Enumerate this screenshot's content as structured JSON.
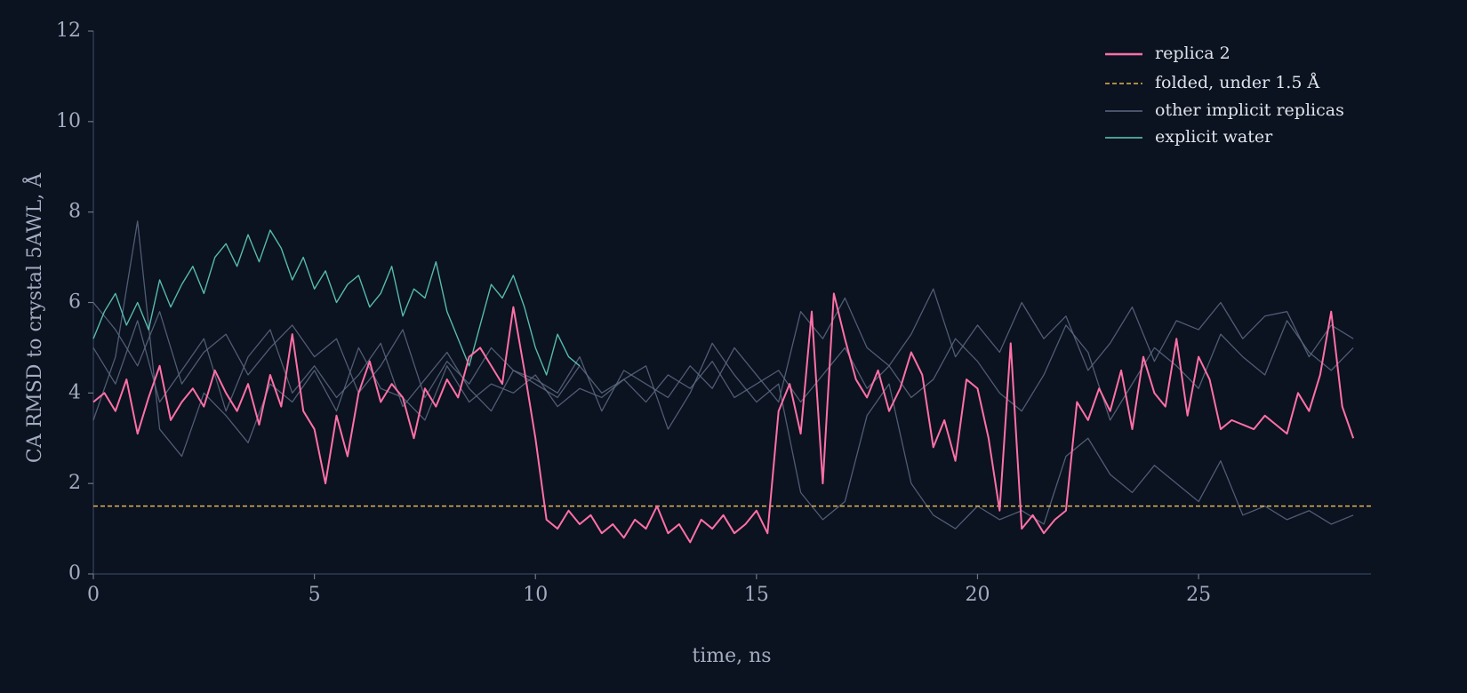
{
  "chart_data": {
    "type": "line",
    "xlabel": "time, ns",
    "ylabel": "CA RMSD to crystal 5AWL, Å",
    "xlim": [
      0,
      28.9
    ],
    "ylim": [
      0,
      12
    ],
    "xticks": [
      0,
      5,
      10,
      15,
      20,
      25
    ],
    "yticks": [
      0,
      2,
      4,
      6,
      8,
      10,
      12
    ],
    "grid": false,
    "legend": "upper right",
    "hline": {
      "value": 1.5,
      "label": "folded, under 1.5 Å",
      "color": "#e3b552"
    },
    "series": [
      {
        "name": "replica 2",
        "color": "#ff70a6",
        "x": [
          0,
          0.25,
          0.5,
          0.75,
          1,
          1.25,
          1.5,
          1.75,
          2,
          2.25,
          2.5,
          2.75,
          3,
          3.25,
          3.5,
          3.75,
          4,
          4.25,
          4.5,
          4.75,
          5,
          5.25,
          5.5,
          5.75,
          6,
          6.25,
          6.5,
          6.75,
          7,
          7.25,
          7.5,
          7.75,
          8,
          8.25,
          8.5,
          8.75,
          9,
          9.25,
          9.5,
          9.75,
          10,
          10.25,
          10.5,
          10.75,
          11,
          11.25,
          11.5,
          11.75,
          12,
          12.25,
          12.5,
          12.75,
          13,
          13.25,
          13.5,
          13.75,
          14,
          14.25,
          14.5,
          14.75,
          15,
          15.25,
          15.5,
          15.75,
          16,
          16.25,
          16.5,
          16.75,
          17,
          17.25,
          17.5,
          17.75,
          18,
          18.25,
          18.5,
          18.75,
          19,
          19.25,
          19.5,
          19.75,
          20,
          20.25,
          20.5,
          20.75,
          21,
          21.25,
          21.5,
          21.75,
          22,
          22.25,
          22.5,
          22.75,
          23,
          23.25,
          23.5,
          23.75,
          24,
          24.25,
          24.5,
          24.75,
          25,
          25.25,
          25.5,
          25.75,
          26,
          26.25,
          26.5,
          26.75,
          27,
          27.25,
          27.5,
          27.75,
          28,
          28.25,
          28.5
        ],
        "values": [
          3.8,
          4.0,
          3.6,
          4.3,
          3.1,
          3.9,
          4.6,
          3.4,
          3.8,
          4.1,
          3.7,
          4.5,
          4.0,
          3.6,
          4.2,
          3.3,
          4.4,
          3.7,
          5.3,
          3.6,
          3.2,
          2.0,
          3.5,
          2.6,
          4.0,
          4.7,
          3.8,
          4.2,
          3.9,
          3.0,
          4.1,
          3.7,
          4.3,
          3.9,
          4.8,
          5.0,
          4.6,
          4.2,
          5.9,
          4.5,
          3.0,
          1.2,
          1.0,
          1.4,
          1.1,
          1.3,
          0.9,
          1.1,
          0.8,
          1.2,
          1.0,
          1.5,
          0.9,
          1.1,
          0.7,
          1.2,
          1.0,
          1.3,
          0.9,
          1.1,
          1.4,
          0.9,
          3.6,
          4.2,
          3.1,
          5.8,
          2.0,
          6.2,
          5.2,
          4.3,
          3.9,
          4.5,
          3.6,
          4.1,
          4.9,
          4.4,
          2.8,
          3.4,
          2.5,
          4.3,
          4.1,
          3.0,
          1.4,
          5.1,
          1.0,
          1.3,
          0.9,
          1.2,
          1.4,
          3.8,
          3.4,
          4.1,
          3.6,
          4.5,
          3.2,
          4.8,
          4.0,
          3.7,
          5.2,
          3.5,
          4.8,
          4.3,
          3.2,
          3.4,
          3.3,
          3.2,
          3.5,
          3.3,
          3.1,
          4.0,
          3.6,
          4.4,
          5.8,
          3.7,
          3.0
        ]
      },
      {
        "name": "other implicit replicas",
        "color": "#5d6a83",
        "x": [
          0,
          0.5,
          1,
          1.5,
          2,
          2.5,
          3,
          3.5,
          4,
          4.5,
          5,
          5.5,
          6,
          6.5,
          7,
          7.5,
          8,
          8.5,
          9,
          9.5,
          10,
          10.5,
          11,
          11.5,
          12,
          12.5,
          13,
          13.5,
          14,
          14.5,
          15,
          15.5,
          16,
          16.5,
          17,
          17.5,
          18,
          18.5,
          19,
          19.5,
          20,
          20.5,
          21,
          21.5,
          22,
          22.5,
          23,
          23.5,
          24,
          24.5,
          25,
          25.5,
          26,
          26.5,
          27,
          27.5,
          28,
          28.5
        ],
        "values": [
          5.0,
          4.2,
          5.6,
          3.8,
          4.5,
          5.2,
          3.6,
          4.8,
          5.4,
          4.0,
          4.6,
          3.9,
          4.4,
          5.1,
          3.7,
          4.3,
          4.9,
          4.1,
          3.6,
          4.5,
          4.2,
          3.9,
          4.6,
          4.0,
          4.3,
          3.8,
          4.4,
          4.1,
          4.7,
          3.9,
          4.2,
          4.5,
          3.8,
          4.4,
          5.0,
          4.1,
          4.6,
          3.9,
          4.3,
          5.2,
          4.7,
          4.0,
          3.6,
          4.4,
          5.5,
          4.9,
          3.4,
          4.2,
          5.0,
          4.6,
          4.1,
          5.3,
          4.8,
          4.4,
          5.6,
          4.9,
          4.5,
          5.0
        ]
      },
      {
        "color": "#5d6a83",
        "x": [
          0,
          0.5,
          1,
          1.5,
          2,
          2.5,
          3,
          3.5,
          4,
          4.5,
          5,
          5.5,
          6,
          6.5,
          7,
          7.5,
          8,
          8.5,
          9,
          9.5,
          10,
          10.5,
          11,
          11.5,
          12,
          12.5,
          13,
          13.5,
          14,
          14.5,
          15,
          15.5,
          16,
          16.5,
          17,
          17.5,
          18,
          18.5,
          19,
          19.5,
          20,
          20.5,
          21,
          21.5,
          22,
          22.5,
          23,
          23.5,
          24,
          24.5,
          25,
          25.5,
          26,
          26.5,
          27,
          27.5,
          28,
          28.5
        ],
        "values": [
          3.4,
          4.8,
          7.8,
          3.2,
          2.6,
          4.0,
          3.5,
          2.9,
          4.2,
          3.8,
          4.5,
          3.6,
          5.0,
          4.1,
          3.9,
          3.4,
          4.6,
          3.8,
          4.2,
          4.0,
          4.4,
          3.7,
          4.1,
          3.9,
          4.3,
          4.6,
          3.2,
          4.0,
          5.1,
          4.4,
          3.8,
          4.2,
          1.8,
          1.2,
          1.6,
          3.5,
          4.2,
          2.0,
          1.3,
          1.0,
          1.5,
          1.2,
          1.4,
          1.1,
          2.6,
          3.0,
          2.2,
          1.8,
          2.4,
          2.0,
          1.6,
          2.5,
          1.3,
          1.5,
          1.2,
          1.4,
          1.1,
          1.3
        ]
      },
      {
        "color": "#5d6a83",
        "x": [
          0,
          0.5,
          1,
          1.5,
          2,
          2.5,
          3,
          3.5,
          4,
          4.5,
          5,
          5.5,
          6,
          6.5,
          7,
          7.5,
          8,
          8.5,
          9,
          9.5,
          10,
          10.5,
          11,
          11.5,
          12,
          12.5,
          13,
          13.5,
          14,
          14.5,
          15,
          15.5,
          16,
          16.5,
          17,
          17.5,
          18,
          18.5,
          19,
          19.5,
          20,
          20.5,
          21,
          21.5,
          22,
          22.5,
          23,
          23.5,
          24,
          24.5,
          25,
          25.5,
          26,
          26.5,
          27,
          27.5,
          28,
          28.5
        ],
        "values": [
          6.0,
          5.4,
          4.6,
          5.8,
          4.2,
          4.9,
          5.3,
          4.4,
          5.0,
          5.5,
          4.8,
          5.2,
          4.0,
          4.6,
          5.4,
          3.9,
          4.7,
          4.2,
          5.0,
          4.5,
          4.3,
          4.0,
          4.8,
          3.6,
          4.5,
          4.2,
          3.9,
          4.6,
          4.1,
          5.0,
          4.4,
          3.8,
          5.8,
          5.2,
          6.1,
          5.0,
          4.6,
          5.3,
          6.3,
          4.8,
          5.5,
          4.9,
          6.0,
          5.2,
          5.7,
          4.5,
          5.1,
          5.9,
          4.7,
          5.6,
          5.4,
          6.0,
          5.2,
          5.7,
          5.8,
          4.8,
          5.5,
          5.2
        ]
      },
      {
        "name": "explicit water",
        "color": "#5ecdbb",
        "x": [
          0,
          0.25,
          0.5,
          0.75,
          1,
          1.25,
          1.5,
          1.75,
          2,
          2.25,
          2.5,
          2.75,
          3,
          3.25,
          3.5,
          3.75,
          4,
          4.25,
          4.5,
          4.75,
          5,
          5.25,
          5.5,
          5.75,
          6,
          6.25,
          6.5,
          6.75,
          7,
          7.25,
          7.5,
          7.75,
          8,
          8.25,
          8.5,
          8.75,
          9,
          9.25,
          9.5,
          9.75,
          10,
          10.25,
          10.5,
          10.75,
          11
        ],
        "values": [
          5.2,
          5.8,
          6.2,
          5.5,
          6.0,
          5.4,
          6.5,
          5.9,
          6.4,
          6.8,
          6.2,
          7.0,
          7.3,
          6.8,
          7.5,
          6.9,
          7.6,
          7.2,
          6.5,
          7.0,
          6.3,
          6.7,
          6.0,
          6.4,
          6.6,
          5.9,
          6.2,
          6.8,
          5.7,
          6.3,
          6.1,
          6.9,
          5.8,
          5.2,
          4.6,
          5.5,
          6.4,
          6.1,
          6.6,
          5.9,
          5.0,
          4.4,
          5.3,
          4.8,
          4.6
        ]
      }
    ]
  }
}
